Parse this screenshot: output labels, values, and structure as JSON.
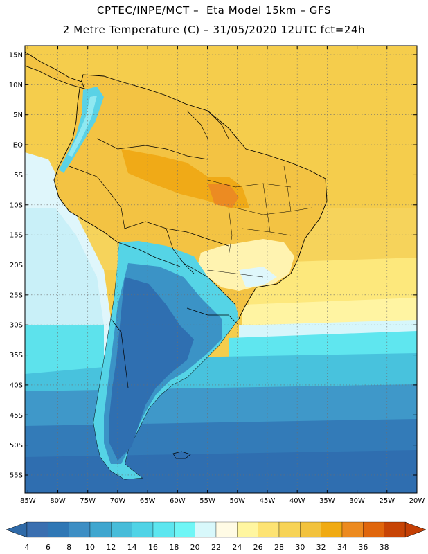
{
  "title_line1": "CPTEC/INPE/MCT –  Eta Model 15km – GFS",
  "title_line2": "2 Metre Temperature (C) – 31/05/2020 12UTC fct=24h",
  "lat_labels": [
    "15N",
    "10N",
    "5N",
    "EQ",
    "5S",
    "10S",
    "15S",
    "20S",
    "25S",
    "30S",
    "35S",
    "40S",
    "45S",
    "50S",
    "55S"
  ],
  "lat_values": [
    15,
    10,
    5,
    0,
    -5,
    -10,
    -15,
    -20,
    -25,
    -30,
    -35,
    -40,
    -45,
    -50,
    -55
  ],
  "lon_labels": [
    "85W",
    "80W",
    "75W",
    "70W",
    "65W",
    "60W",
    "55W",
    "50W",
    "45W",
    "40W",
    "35W",
    "30W",
    "25W",
    "20W"
  ],
  "lon_values": [
    -85,
    -80,
    -75,
    -70,
    -65,
    -60,
    -55,
    -50,
    -45,
    -40,
    -35,
    -30,
    -25,
    -20
  ],
  "extent": {
    "lon_min": -85.5,
    "lon_max": -20,
    "lat_min": -58,
    "lat_max": 16.5
  },
  "colorbar": {
    "labels": [
      "4",
      "6",
      "8",
      "10",
      "12",
      "14",
      "16",
      "18",
      "20",
      "22",
      "24",
      "26",
      "28",
      "30",
      "32",
      "34",
      "36",
      "38"
    ],
    "colors": [
      "#3a6fb0",
      "#2f77b5",
      "#3d8ec4",
      "#3fa6cf",
      "#47bcd9",
      "#50d3e6",
      "#5de6ef",
      "#6ff6f6",
      "#d8f8fb",
      "#fffbe5",
      "#fff6a0",
      "#fde373",
      "#f7d356",
      "#f2c23d",
      "#f0aa12",
      "#ec8a1f",
      "#e0660c",
      "#c74405"
    ],
    "arrow_left_color": "#2f6aa8",
    "arrow_right_color": "#c43f05"
  },
  "colors": {
    "ocean_north": "#f6d155",
    "ocean_south_cold": "#2f6eb0",
    "land_warm": "#f4c13e",
    "grid": "#6e6e6e"
  }
}
